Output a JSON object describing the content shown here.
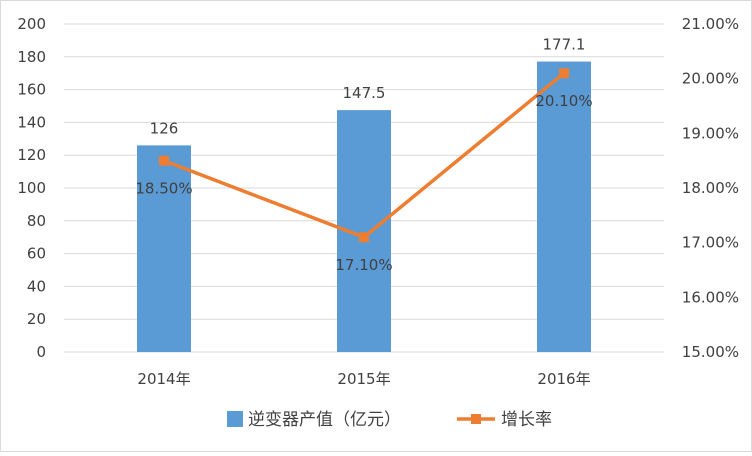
{
  "chart_data": {
    "type": "bar+line",
    "categories": [
      "2014年",
      "2015年",
      "2016年"
    ],
    "series": [
      {
        "name": "逆变器产值（亿元）",
        "type": "bar",
        "axis": "left",
        "values": [
          126,
          147.5,
          177.1
        ],
        "labels": [
          "126",
          "147.5",
          "177.1"
        ],
        "color": "#5b9bd5"
      },
      {
        "name": "增长率",
        "type": "line",
        "axis": "right",
        "values": [
          18.5,
          17.1,
          20.1
        ],
        "labels": [
          "18.50%",
          "17.10%",
          "20.10%"
        ],
        "color": "#ed7d31"
      }
    ],
    "y_left": {
      "min": 0,
      "max": 200,
      "step": 20,
      "ticks": [
        "0",
        "20",
        "40",
        "60",
        "80",
        "100",
        "120",
        "140",
        "160",
        "180",
        "200"
      ]
    },
    "y_right": {
      "min": 15,
      "max": 21,
      "step": 1,
      "ticks": [
        "15.00%",
        "16.00%",
        "17.00%",
        "18.00%",
        "19.00%",
        "20.00%",
        "21.00%"
      ]
    },
    "grid": true,
    "legend_position": "bottom"
  }
}
